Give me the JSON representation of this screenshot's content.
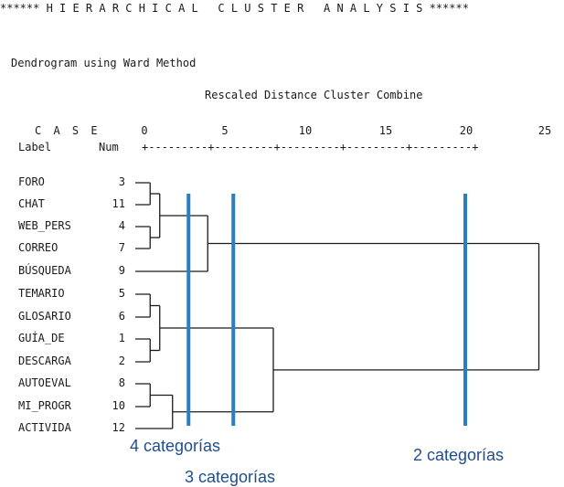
{
  "header": "****** H I E R A R C H I C A L   C L U S T E R   A N A L Y S I S ******",
  "subtitle": "Dendrogram using Ward Method",
  "axis_title": "Rescaled Distance Cluster Combine",
  "case_header": "C A S E",
  "label_header": "Label",
  "num_header": "Num",
  "ruler": "+---------+---------+---------+---------+---------+",
  "ticks": [
    "0",
    "5",
    "10",
    "15",
    "20",
    "25"
  ],
  "leaves": [
    {
      "label": "FORO",
      "num": "3"
    },
    {
      "label": "CHAT",
      "num": "11"
    },
    {
      "label": "WEB_PERS",
      "num": "4"
    },
    {
      "label": "CORREO",
      "num": "7"
    },
    {
      "label": "BÚSQUEDA",
      "num": "9"
    },
    {
      "label": "TEMARIO",
      "num": "5"
    },
    {
      "label": "GLOSARIO",
      "num": "6"
    },
    {
      "label": "GUÍA_DE",
      "num": "1"
    },
    {
      "label": "DESCARGA",
      "num": "2"
    },
    {
      "label": "AUTOEVAL",
      "num": "8"
    },
    {
      "label": "MI_PROGR",
      "num": "10"
    },
    {
      "label": "ACTIVIDA",
      "num": "12"
    }
  ],
  "merges": [
    {
      "a": "FORO",
      "b": "CHAT",
      "distance": 0.3
    },
    {
      "a": "WEB_PERS",
      "b": "CORREO",
      "distance": 0.3
    },
    {
      "a": "TEMARIO",
      "b": "GLOSARIO",
      "distance": 0.3
    },
    {
      "a": "GUÍA_DE",
      "b": "DESCARGA",
      "distance": 0.3
    },
    {
      "a": "AUTOEVAL",
      "b": "MI_PROGR",
      "distance": 0.3
    },
    {
      "a": "FORO-CHAT",
      "b": "WEB_PERS-CORREO",
      "distance": 0.9
    },
    {
      "a": "TEMARIO-GLOSARIO",
      "b": "GUÍA_DE-DESCARGA",
      "distance": 0.9
    },
    {
      "a": "AUTOEVAL-MI_PROGR",
      "b": "ACTIVIDA",
      "distance": 1.7
    },
    {
      "a": "group A",
      "b": "BÚSQUEDA",
      "distance": 3.9
    },
    {
      "a": "group B",
      "b": "group C",
      "distance": 8.0
    },
    {
      "a": "group D",
      "b": "group E",
      "distance": 24.6
    }
  ],
  "cut_lines": [
    {
      "distance": 2.7,
      "color": "#2a7fc4"
    },
    {
      "distance": 5.5,
      "color": "#2a7fc4"
    },
    {
      "distance": 20.0,
      "color": "#2a7fc4"
    }
  ],
  "annotations": [
    {
      "text": "4 categorías",
      "distance": 2.7
    },
    {
      "text": "3 categorías",
      "distance": 5.5
    },
    {
      "text": "2 categorías",
      "distance": 20.0
    }
  ],
  "colors": {
    "line": "#1a1a1a",
    "cut": "#2a7fc4",
    "annotation": "#1f4e8c"
  }
}
